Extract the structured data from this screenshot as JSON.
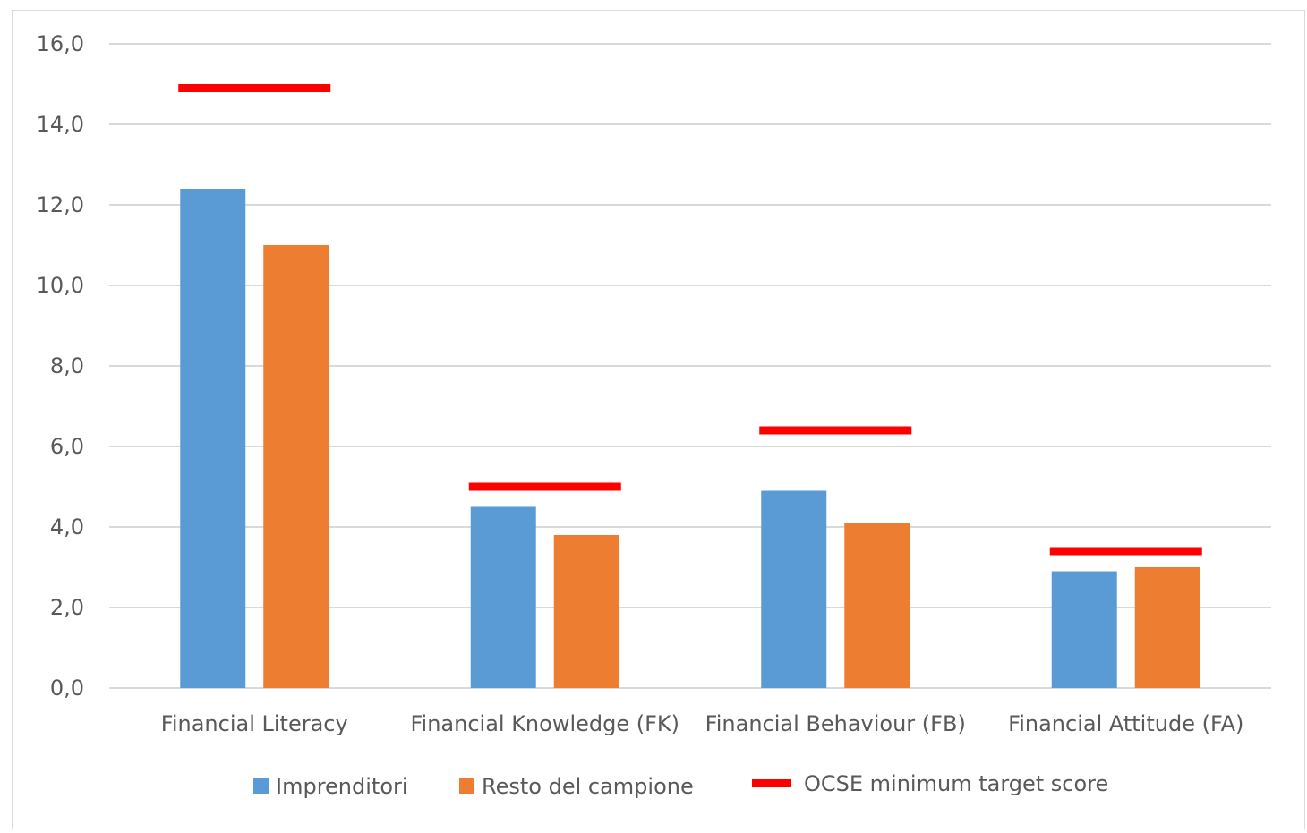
{
  "chart_data": {
    "type": "bar",
    "categories": [
      "Financial Literacy",
      "Financial Knowledge (FK)",
      "Financial Behaviour (FB)",
      "Financial Attitude (FA)"
    ],
    "series": [
      {
        "name": "Imprenditori",
        "color": "#5b9bd5",
        "values": [
          12.4,
          4.5,
          4.9,
          2.9
        ]
      },
      {
        "name": "Resto del campione",
        "color": "#ed7d31",
        "values": [
          11.0,
          3.8,
          4.1,
          3.0
        ]
      }
    ],
    "target": {
      "name": "OCSE minimum target score",
      "color": "#ff0000",
      "values": [
        14.9,
        5.0,
        6.4,
        3.4
      ]
    },
    "ylim": [
      0,
      16
    ],
    "yticks": [
      "0,0",
      "2,0",
      "4,0",
      "6,0",
      "8,0",
      "10,0",
      "12,0",
      "14,0",
      "16,0"
    ],
    "grid": true,
    "legend_position": "bottom"
  }
}
